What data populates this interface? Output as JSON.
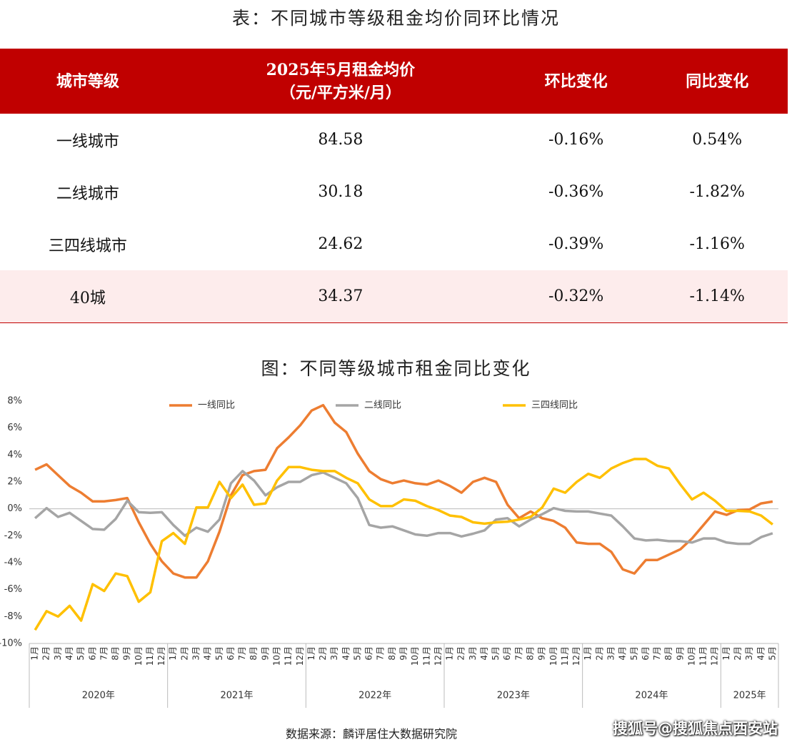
{
  "table": {
    "title": "表：不同城市等级租金均价同环比情况",
    "header": [
      [
        "城市等级"
      ],
      [
        "2025年5月租金均价",
        "（元/平方米/月）"
      ],
      [
        "环比变化"
      ],
      [
        "同比变化"
      ]
    ],
    "rows": [
      [
        "一线城市",
        "84.58",
        "-0.16%",
        "0.54%"
      ],
      [
        "二线城市",
        "30.18",
        "-0.36%",
        "-1.82%"
      ],
      [
        "三四线城市",
        "24.62",
        "-0.39%",
        "-1.16%"
      ],
      [
        "40城",
        "34.37",
        "-0.32%",
        "-1.14%"
      ]
    ]
  },
  "chart_data": {
    "type": "line",
    "title": "图：不同等级城市租金同比变化",
    "categories": [
      "1月",
      "2月",
      "3月",
      "4月",
      "5月",
      "6月",
      "7月",
      "8月",
      "9月",
      "10月",
      "11月",
      "12月",
      "1月",
      "2月",
      "3月",
      "4月",
      "5月",
      "6月",
      "7月",
      "8月",
      "9月",
      "10月",
      "11月",
      "12月",
      "1月",
      "2月",
      "3月",
      "4月",
      "5月",
      "6月",
      "7月",
      "8月",
      "9月",
      "10月",
      "11月",
      "12月",
      "1月",
      "2月",
      "3月",
      "4月",
      "5月",
      "6月",
      "7月",
      "8月",
      "9月",
      "10月",
      "11月",
      "12月",
      "1月",
      "2月",
      "3月",
      "4月",
      "5月",
      "6月",
      "7月",
      "8月",
      "9月",
      "10月",
      "11月",
      "12月",
      "1月",
      "2月",
      "3月",
      "4月",
      "5月"
    ],
    "year_labels": [
      "2020年",
      "2021年",
      "2022年",
      "2023年",
      "2024年",
      "2025年"
    ],
    "series": [
      {
        "name": "一线同比",
        "color": "#ED7D31",
        "values": [
          2.9,
          3.3,
          2.5,
          1.7,
          1.2,
          0.55,
          0.55,
          0.65,
          0.8,
          -1.0,
          -2.6,
          -3.9,
          -4.8,
          -5.1,
          -5.1,
          -3.9,
          -1.7,
          1.0,
          2.5,
          2.8,
          2.9,
          4.5,
          5.3,
          6.2,
          7.3,
          7.7,
          6.4,
          5.7,
          4.1,
          2.8,
          2.2,
          1.9,
          2.1,
          1.9,
          1.8,
          2.1,
          1.7,
          1.2,
          2.0,
          2.3,
          2.0,
          0.3,
          -0.7,
          -0.2,
          -0.7,
          -0.9,
          -1.4,
          -2.5,
          -2.6,
          -2.6,
          -3.2,
          -4.5,
          -4.8,
          -3.8,
          -3.8,
          -3.4,
          -3.0,
          -2.2,
          -1.2,
          -0.2,
          -0.45,
          -0.1,
          -0.05,
          0.4,
          0.54
        ]
      },
      {
        "name": "二线同比",
        "color": "#A5A5A5",
        "values": [
          -0.7,
          0.05,
          -0.6,
          -0.3,
          -0.9,
          -1.5,
          -1.55,
          -0.75,
          0.6,
          -0.25,
          -0.3,
          -0.25,
          -1.2,
          -2.0,
          -1.4,
          -1.7,
          -0.8,
          1.9,
          2.8,
          2.1,
          1.0,
          1.6,
          2.0,
          2.0,
          2.5,
          2.7,
          2.3,
          1.9,
          0.8,
          -1.2,
          -1.4,
          -1.3,
          -1.6,
          -1.9,
          -2.0,
          -1.8,
          -1.8,
          -2.05,
          -1.85,
          -1.6,
          -0.8,
          -0.7,
          -1.3,
          -0.8,
          -0.4,
          0.05,
          -0.15,
          -0.2,
          -0.2,
          -0.35,
          -0.5,
          -1.3,
          -2.2,
          -2.35,
          -2.3,
          -2.4,
          -2.4,
          -2.5,
          -2.2,
          -2.2,
          -2.5,
          -2.6,
          -2.6,
          -2.1,
          -1.82
        ]
      },
      {
        "name": "三四线同比",
        "color": "#FFC000",
        "values": [
          -9.0,
          -7.6,
          -8.0,
          -7.2,
          -8.3,
          -5.6,
          -6.1,
          -4.8,
          -5.0,
          -6.9,
          -6.2,
          -2.4,
          -1.8,
          -2.6,
          0.1,
          0.1,
          2.0,
          0.8,
          1.8,
          0.3,
          0.4,
          2.1,
          3.1,
          3.1,
          2.9,
          2.8,
          2.8,
          2.3,
          1.9,
          0.7,
          0.2,
          0.2,
          0.7,
          0.6,
          0.2,
          -0.1,
          -0.5,
          -0.6,
          -1.0,
          -1.1,
          -1.0,
          -0.95,
          -0.8,
          -0.6,
          0.1,
          1.5,
          1.2,
          2.0,
          2.6,
          2.3,
          3.0,
          3.4,
          3.7,
          3.7,
          3.2,
          3.0,
          1.8,
          0.7,
          1.2,
          0.6,
          -0.15,
          -0.15,
          -0.2,
          -0.5,
          -1.16
        ]
      }
    ],
    "ylim": [
      -10,
      8
    ],
    "yticks": [
      {
        "value": -10,
        "label": "-10%"
      },
      {
        "value": -8,
        "label": "-8%"
      },
      {
        "value": -6,
        "label": "-6%"
      },
      {
        "value": -4,
        "label": "-4%"
      },
      {
        "value": -2,
        "label": "-2%"
      },
      {
        "value": 0,
        "label": "0%"
      },
      {
        "value": 2,
        "label": "2%"
      },
      {
        "value": 4,
        "label": "4%"
      },
      {
        "value": 6,
        "label": "6%"
      },
      {
        "value": 8,
        "label": "8%"
      }
    ],
    "source": "数据来源：麟评居住大数据研究院"
  },
  "watermark": "搜狐号@搜狐焦点西安站"
}
